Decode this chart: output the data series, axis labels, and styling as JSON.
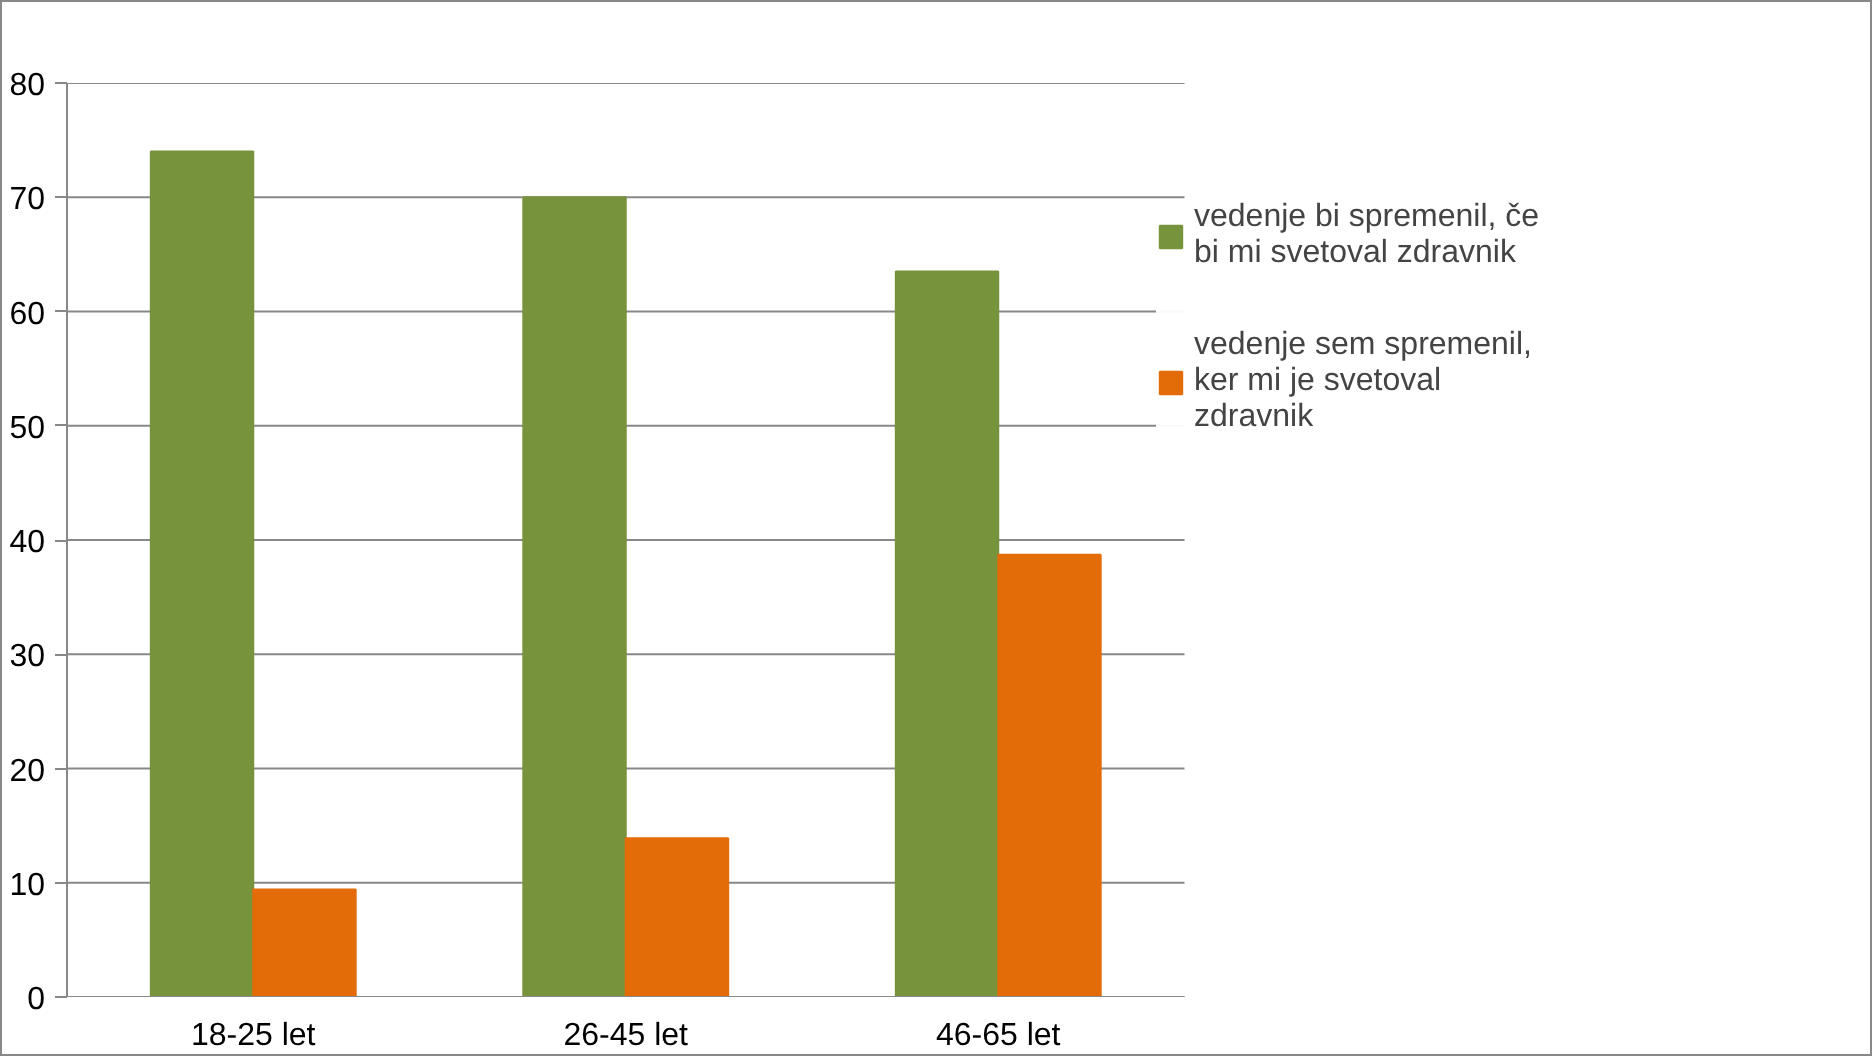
{
  "chart_data": {
    "type": "bar",
    "categories": [
      "18-25 let",
      "26-45 let",
      "46-65 let"
    ],
    "series": [
      {
        "name": "vedenje bi spremenil, če bi mi svetoval zdravnik",
        "color": "#77933c",
        "values": [
          74,
          70,
          63.5
        ]
      },
      {
        "name": "vedenje sem spremenil, ker mi je svetoval zdravnik",
        "color": "#e36c09",
        "values": [
          9.4,
          13.9,
          38.7
        ]
      }
    ],
    "ylim": [
      0,
      80
    ],
    "yticks": [
      0,
      10,
      20,
      30,
      40,
      50,
      60,
      70,
      80
    ],
    "grid": "y",
    "legend": "right"
  }
}
